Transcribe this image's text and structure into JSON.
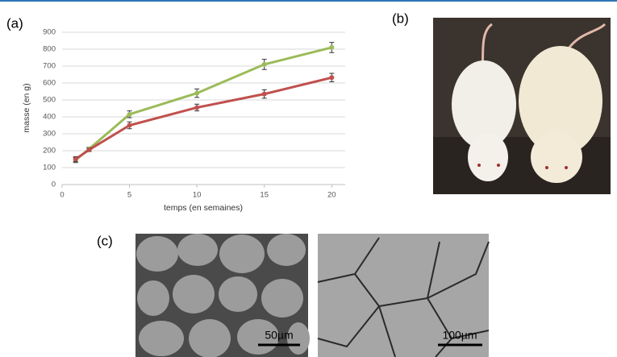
{
  "chart_data": {
    "type": "line",
    "x_label": "temps (en semaines)",
    "y_label": "masse (en g)",
    "x": [
      1,
      2,
      5,
      10,
      15,
      20
    ],
    "series": [
      {
        "color": "#9bbb59",
        "values": [
          145,
          210,
          415,
          540,
          710,
          810
        ],
        "errors": [
          15,
          10,
          20,
          25,
          30,
          30
        ]
      },
      {
        "color": "#c0504d",
        "values": [
          150,
          205,
          350,
          455,
          535,
          632
        ],
        "errors": [
          15,
          10,
          20,
          20,
          25,
          25
        ]
      }
    ],
    "xlim": [
      0,
      21
    ],
    "ylim": [
      0,
      900
    ],
    "xticks": [
      0,
      5,
      10,
      15,
      20
    ],
    "yticks": [
      0,
      100,
      200,
      300,
      400,
      500,
      600,
      700,
      800,
      900
    ],
    "grid": true
  },
  "panels": {
    "a": "(a)",
    "b": "(b)",
    "c": "(c)"
  },
  "scale_bars": [
    "50µm",
    "100µm"
  ]
}
